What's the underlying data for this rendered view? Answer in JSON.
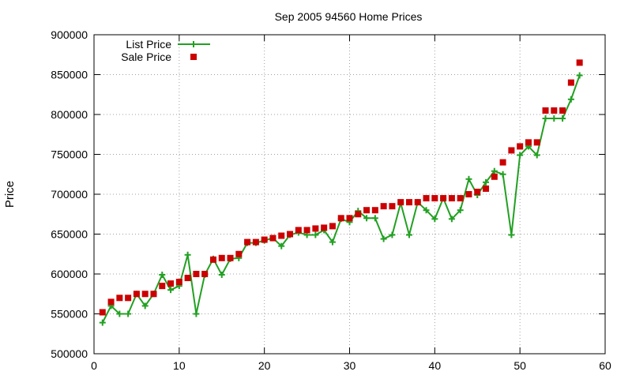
{
  "chart_data": {
    "type": "line",
    "title": "Sep 2005 94560 Home Prices",
    "xlabel": "",
    "ylabel": "Price",
    "xlim": [
      0,
      60
    ],
    "ylim": [
      500000,
      900000
    ],
    "x_ticks": [
      0,
      10,
      20,
      30,
      40,
      50,
      60
    ],
    "y_ticks": [
      500000,
      550000,
      600000,
      650000,
      700000,
      750000,
      800000,
      850000,
      900000
    ],
    "grid": true,
    "legend_position": "top-left",
    "series": [
      {
        "name": "List Price",
        "style": "line-with-plus-markers",
        "color": "#22a022",
        "x": [
          1,
          2,
          3,
          4,
          5,
          6,
          7,
          8,
          9,
          10,
          11,
          12,
          13,
          14,
          15,
          16,
          17,
          18,
          19,
          20,
          21,
          22,
          23,
          24,
          25,
          26,
          27,
          28,
          29,
          30,
          31,
          32,
          33,
          34,
          35,
          36,
          37,
          38,
          39,
          40,
          41,
          42,
          43,
          44,
          45,
          46,
          47,
          48,
          49,
          50,
          51,
          52,
          53,
          54,
          55,
          56,
          57
        ],
        "values": [
          539000,
          560000,
          550000,
          550000,
          575000,
          560000,
          575000,
          599000,
          580000,
          585000,
          624000,
          550000,
          599000,
          619000,
          599000,
          619000,
          620000,
          639000,
          639000,
          642000,
          645000,
          635000,
          649000,
          652000,
          649000,
          649000,
          655000,
          640000,
          669000,
          665000,
          679000,
          670000,
          670000,
          644000,
          649000,
          689000,
          649000,
          690000,
          680000,
          669000,
          695000,
          669000,
          680000,
          719000,
          699000,
          715000,
          729000,
          725000,
          649000,
          749000,
          760000,
          749000,
          795000,
          795000,
          795000,
          819000,
          849000
        ]
      },
      {
        "name": "Sale Price",
        "style": "square-markers",
        "color": "#cc0000",
        "x": [
          1,
          2,
          3,
          4,
          5,
          6,
          7,
          8,
          9,
          10,
          11,
          12,
          13,
          14,
          15,
          16,
          17,
          18,
          19,
          20,
          21,
          22,
          23,
          24,
          25,
          26,
          27,
          28,
          29,
          30,
          31,
          32,
          33,
          34,
          35,
          36,
          37,
          38,
          39,
          40,
          41,
          42,
          43,
          44,
          45,
          46,
          47,
          48,
          49,
          50,
          51,
          52,
          53,
          54,
          55,
          56,
          57
        ],
        "values": [
          552000,
          565000,
          570000,
          570000,
          575000,
          575000,
          575000,
          585000,
          588000,
          590000,
          595000,
          600000,
          600000,
          618000,
          620000,
          620000,
          625000,
          640000,
          640000,
          643000,
          645000,
          648000,
          650000,
          655000,
          655000,
          657000,
          658000,
          660000,
          670000,
          670000,
          675000,
          680000,
          680000,
          685000,
          685000,
          690000,
          690000,
          690000,
          695000,
          695000,
          695000,
          695000,
          695000,
          700000,
          703000,
          707000,
          722000,
          740000,
          755000,
          760000,
          765000,
          765000,
          805000,
          805000,
          805000,
          840000,
          865000
        ]
      }
    ]
  }
}
